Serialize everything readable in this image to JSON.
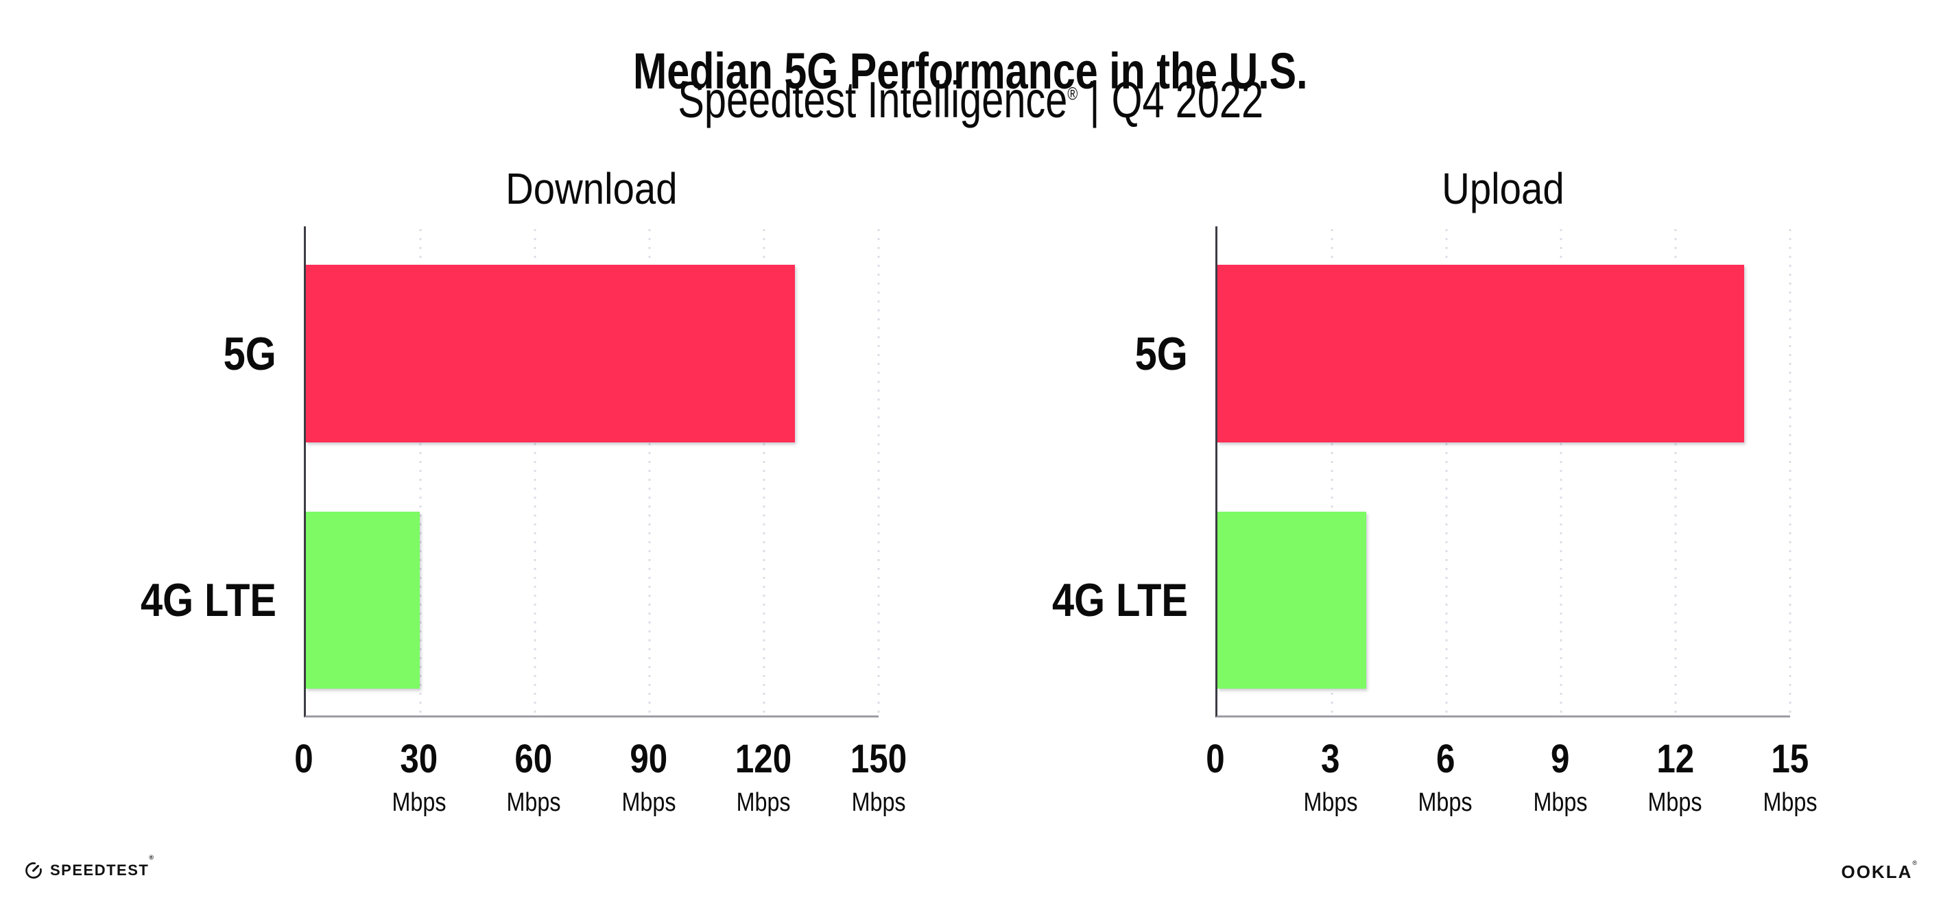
{
  "page_title": "Median 5G Performance in the U.S.",
  "subtitle": {
    "brand": "Speedtest Intelligence",
    "registered_mark": "®",
    "separator": "|",
    "period": "Q4 2022"
  },
  "colors": {
    "bar_5g": "#FF2E55",
    "bar_4g_lte": "#7DFA64",
    "text": "#0A0A0B",
    "gridline": "#DDDDE7",
    "x_axis_line": "#9D9DA5",
    "y_axis_line": "#3C3C44",
    "background": "#FFFFFF"
  },
  "chart_data": [
    {
      "type": "bar",
      "orientation": "horizontal",
      "title": "Download",
      "categories": [
        "5G",
        "4G LTE"
      ],
      "values": [
        128,
        29.9
      ],
      "unit": "Mbps",
      "xlim": [
        0,
        150
      ],
      "xticks": [
        0,
        30,
        60,
        90,
        120,
        150
      ],
      "tick_unit_label": "Mbps",
      "grid": "dotted-vertical",
      "legend": "none",
      "bar_colors": [
        "#FF2E55",
        "#7DFA64"
      ]
    },
    {
      "type": "bar",
      "orientation": "horizontal",
      "title": "Upload",
      "categories": [
        "5G",
        "4G LTE"
      ],
      "values": [
        13.8,
        3.9
      ],
      "unit": "Mbps",
      "xlim": [
        0,
        15
      ],
      "xticks": [
        0,
        3,
        6,
        9,
        12,
        15
      ],
      "tick_unit_label": "Mbps",
      "grid": "dotted-vertical",
      "legend": "none",
      "bar_colors": [
        "#FF2E55",
        "#7DFA64"
      ]
    }
  ],
  "footer": {
    "speedtest": {
      "icon": "gauge-icon",
      "label": "SPEEDTEST",
      "mark": "®"
    },
    "ookla": {
      "label": "OOKLA",
      "mark": "®"
    }
  }
}
